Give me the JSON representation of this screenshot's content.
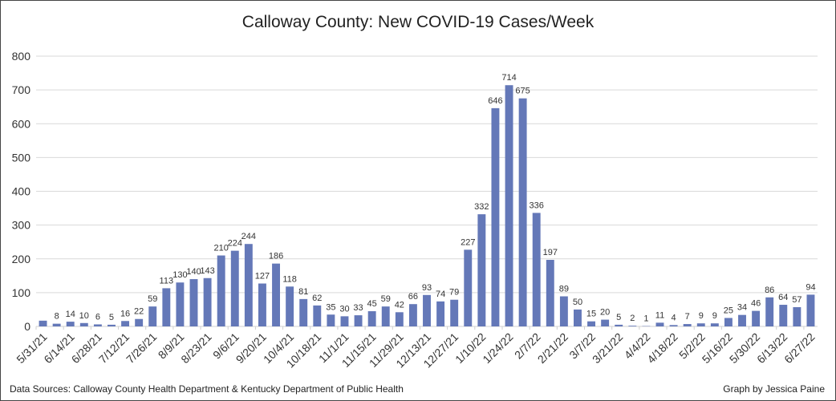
{
  "chart_data": {
    "type": "bar",
    "title": "Calloway County: New COVID-19 Cases/Week",
    "tick_labels": [
      "5/31/21",
      "6/14/21",
      "6/28/21",
      "7/12/21",
      "7/26/21",
      "8/9/21",
      "8/23/21",
      "9/6/21",
      "9/20/21",
      "10/4/21",
      "10/18/21",
      "11/1/21",
      "11/15/21",
      "11/29/21",
      "12/13/21",
      "12/27/21",
      "1/10/22",
      "1/24/22",
      "2/7/22",
      "2/21/22",
      "3/7/22",
      "3/21/22",
      "4/4/22",
      "4/18/22",
      "5/2/22",
      "5/16/22",
      "5/30/22",
      "6/13/22",
      "6/27/22"
    ],
    "values": [
      17,
      8,
      14,
      10,
      6,
      5,
      16,
      22,
      59,
      113,
      130,
      140,
      143,
      210,
      224,
      244,
      127,
      186,
      118,
      81,
      62,
      35,
      30,
      33,
      45,
      59,
      42,
      66,
      93,
      74,
      79,
      227,
      332,
      646,
      714,
      675,
      336,
      197,
      89,
      50,
      15,
      20,
      5,
      2,
      1,
      11,
      4,
      7,
      9,
      9,
      25,
      34,
      46,
      86,
      64,
      57,
      94
    ],
    "data_labels": [
      "",
      "8",
      "14",
      "10",
      "6",
      "5",
      "16",
      "22",
      "59",
      "113",
      "130",
      "140",
      "143",
      "210",
      "224",
      "244",
      "127",
      "186",
      "118",
      "81",
      "62",
      "35",
      "30",
      "33",
      "45",
      "59",
      "42",
      "66",
      "93",
      "74",
      "79",
      "227",
      "332",
      "646",
      "714",
      "675",
      "336",
      "197",
      "89",
      "50",
      "15",
      "20",
      "5",
      "2",
      "1",
      "11",
      "4",
      "7",
      "9",
      "9",
      "25",
      "34",
      "46",
      "86",
      "64",
      "57",
      "94"
    ],
    "yticks": [
      "0",
      "100",
      "200",
      "300",
      "400",
      "500",
      "600",
      "700",
      "800"
    ],
    "ylim": [
      0,
      800
    ],
    "grid": true,
    "bar_color": "#6478b8"
  },
  "footer": {
    "sources": "Data Sources: Calloway County Health Department & Kentucky Department of Public Health",
    "credit": "Graph by Jessica Paine"
  }
}
